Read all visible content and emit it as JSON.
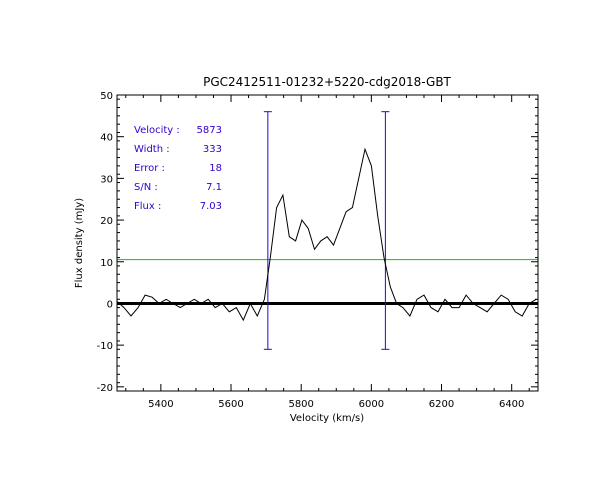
{
  "chart_data": {
    "type": "line",
    "title": "PGC2412511-01232+5220-cdg2018-GBT",
    "xlabel": "Velocity (km/s)",
    "ylabel": "Flux density (mJy)",
    "xlim": [
      5275,
      6475
    ],
    "ylim": [
      -21,
      50
    ],
    "x_ticks": [
      5400,
      5600,
      5800,
      6000,
      6200,
      6400
    ],
    "y_ticks": [
      -20,
      -10,
      0,
      10,
      20,
      30,
      40,
      50
    ],
    "grid": false,
    "series": [
      {
        "color": "#000000",
        "x": [
          5275,
          5295,
          5315,
          5335,
          5355,
          5375,
          5395,
          5415,
          5435,
          5455,
          5475,
          5495,
          5515,
          5535,
          5555,
          5575,
          5595,
          5615,
          5635,
          5655,
          5675,
          5695,
          5712,
          5730,
          5748,
          5766,
          5784,
          5802,
          5820,
          5838,
          5856,
          5874,
          5892,
          5910,
          5928,
          5946,
          5964,
          5982,
          6000,
          6018,
          6036,
          6054,
          6072,
          6090,
          6110,
          6130,
          6150,
          6170,
          6190,
          6210,
          6230,
          6250,
          6270,
          6290,
          6310,
          6330,
          6350,
          6370,
          6390,
          6410,
          6430,
          6450,
          6470
        ],
        "y": [
          0.5,
          -1,
          -3,
          -1,
          2,
          1.5,
          0,
          1,
          0,
          -1,
          0,
          1,
          0,
          1,
          -1,
          0,
          -2,
          -1,
          -4,
          0,
          -3,
          1,
          11,
          23,
          26,
          16,
          15,
          20,
          18,
          13,
          15,
          16,
          14,
          18,
          22,
          23,
          30,
          37,
          33,
          21,
          11,
          4,
          0,
          -1,
          -3,
          1,
          2,
          -1,
          -2,
          1,
          -1,
          -1,
          2,
          0,
          -1,
          -2,
          0,
          2,
          1,
          -2,
          -3,
          0,
          1
        ]
      }
    ],
    "reference_lines": [
      {
        "orientation": "horizontal",
        "y": 0,
        "color": "#000000",
        "style": "thick"
      },
      {
        "orientation": "horizontal",
        "y": 10.5,
        "color": "#00cc00"
      },
      {
        "orientation": "vertical",
        "x": 5705,
        "y_range": [
          -11,
          46
        ],
        "color": "#3300cc"
      },
      {
        "orientation": "vertical",
        "x": 6040,
        "y_range": [
          -11,
          46
        ],
        "color": "#3300cc"
      }
    ],
    "annotations": [
      {
        "label": "Velocity :",
        "value": "5873"
      },
      {
        "label": "Width :",
        "value": "333"
      },
      {
        "label": "Error :",
        "value": "18"
      },
      {
        "label": "S/N :",
        "value": "7.1"
      },
      {
        "label": "Flux :",
        "value": "7.03"
      }
    ]
  }
}
